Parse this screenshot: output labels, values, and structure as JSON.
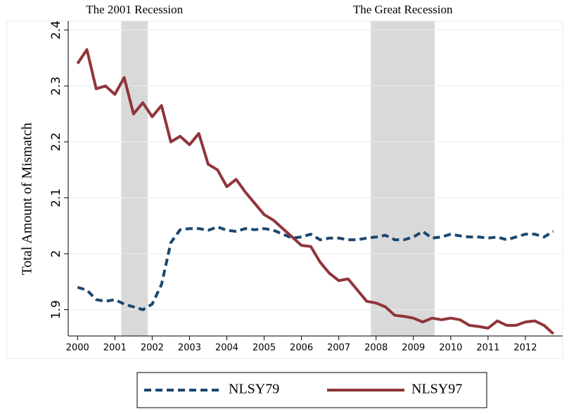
{
  "chart_data": {
    "type": "line",
    "ylabel": "Total Amount of Mismatch",
    "x": [
      2000,
      2000.25,
      2000.5,
      2000.75,
      2001,
      2001.25,
      2001.5,
      2001.75,
      2002,
      2002.25,
      2002.5,
      2002.75,
      2003,
      2003.25,
      2003.5,
      2003.75,
      2004,
      2004.25,
      2004.5,
      2004.75,
      2005,
      2005.25,
      2005.5,
      2005.75,
      2006,
      2006.25,
      2006.5,
      2006.75,
      2007,
      2007.25,
      2007.5,
      2007.75,
      2008,
      2008.25,
      2008.5,
      2008.75,
      2009,
      2009.25,
      2009.5,
      2009.75,
      2010,
      2010.25,
      2010.5,
      2010.75,
      2011,
      2011.25,
      2011.5,
      2011.75,
      2012,
      2012.25,
      2012.5,
      2012.75
    ],
    "series": [
      {
        "name": "NLSY79",
        "color": "#1a476f",
        "dashed": true,
        "values": [
          1.94,
          1.935,
          1.918,
          1.915,
          1.918,
          1.91,
          1.905,
          1.9,
          1.91,
          1.945,
          2.02,
          2.043,
          2.045,
          2.045,
          2.042,
          2.048,
          2.042,
          2.04,
          2.045,
          2.043,
          2.045,
          2.042,
          2.035,
          2.028,
          2.03,
          2.035,
          2.025,
          2.028,
          2.028,
          2.025,
          2.025,
          2.028,
          2.03,
          2.033,
          2.025,
          2.025,
          2.03,
          2.04,
          2.028,
          2.03,
          2.035,
          2.032,
          2.03,
          2.03,
          2.028,
          2.03,
          2.025,
          2.03,
          2.035,
          2.035,
          2.03,
          2.04
        ]
      },
      {
        "name": "NLSY97",
        "color": "#90353b",
        "dashed": false,
        "values": [
          2.34,
          2.365,
          2.295,
          2.3,
          2.285,
          2.315,
          2.25,
          2.27,
          2.245,
          2.265,
          2.2,
          2.21,
          2.195,
          2.215,
          2.16,
          2.15,
          2.12,
          2.133,
          2.11,
          2.09,
          2.07,
          2.06,
          2.045,
          2.03,
          2.015,
          2.013,
          1.985,
          1.965,
          1.952,
          1.955,
          1.935,
          1.915,
          1.912,
          1.905,
          1.89,
          1.888,
          1.885,
          1.878,
          1.885,
          1.882,
          1.885,
          1.882,
          1.872,
          1.87,
          1.867,
          1.88,
          1.872,
          1.872,
          1.878,
          1.88,
          1.872,
          1.857
        ]
      }
    ],
    "shaded_regions": [
      {
        "label": "The 2001 Recession",
        "xrange": [
          2001.17,
          2001.88
        ]
      },
      {
        "label": "The Great Recession",
        "xrange": [
          2007.86,
          2009.57
        ]
      }
    ],
    "xlim": [
      1999.75,
      2013
    ],
    "xticks": [
      2000,
      2001,
      2002,
      2003,
      2004,
      2005,
      2006,
      2007,
      2008,
      2009,
      2010,
      2011,
      2012
    ],
    "ylim": [
      1.853,
      2.416
    ],
    "yticks": [
      1.9,
      2,
      2.1,
      2.2,
      2.3,
      2.4
    ],
    "grid": true,
    "legend": "bottom"
  }
}
